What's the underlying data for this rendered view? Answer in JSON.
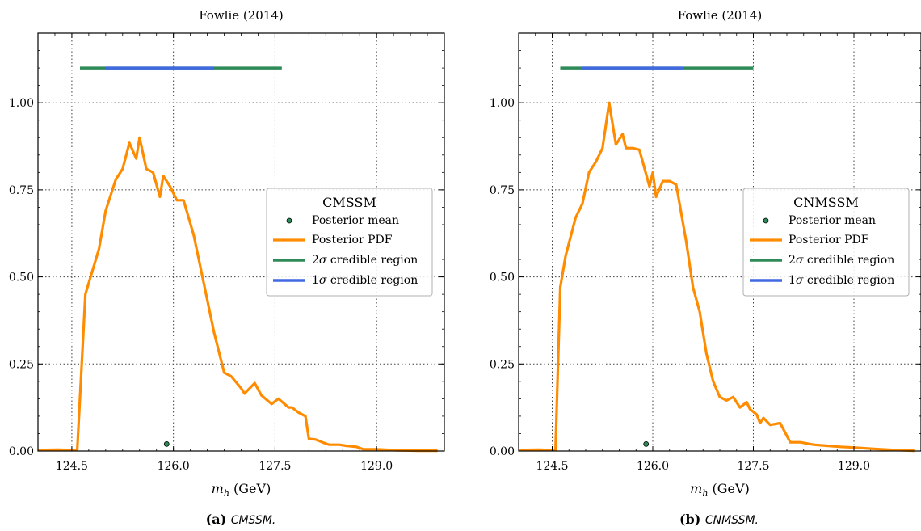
{
  "chart_data": [
    {
      "type": "line",
      "title": "Fowlie (2014)",
      "xlabel": "m_h (GeV)",
      "ylabel": "",
      "xlim": [
        124.0,
        130.0
      ],
      "ylim": [
        0.0,
        1.2
      ],
      "xticks": [
        "124.5",
        "126.0",
        "127.5",
        "129.0"
      ],
      "yticks": [
        "0.00",
        "0.25",
        "0.50",
        "0.75",
        "1.00"
      ],
      "grid": true,
      "legend": {
        "placement": "center-right",
        "title": "CMSSM",
        "entries": [
          "Posterior mean",
          "Posterior PDF",
          "2σ credible region",
          "1σ credible region"
        ]
      },
      "series": [
        {
          "name": "Posterior PDF",
          "x": [
            124.0,
            124.3,
            124.45,
            124.5,
            124.58,
            124.7,
            124.9,
            125.0,
            125.15,
            125.25,
            125.35,
            125.45,
            125.5,
            125.6,
            125.7,
            125.8,
            125.85,
            125.95,
            126.05,
            126.15,
            126.3,
            126.45,
            126.6,
            126.75,
            126.85,
            127.0,
            127.05,
            127.2,
            127.3,
            127.45,
            127.55,
            127.7,
            127.75,
            127.85,
            127.95,
            128.0,
            128.1,
            128.2,
            128.3,
            128.45,
            128.55,
            128.7,
            128.8,
            129.0,
            129.3,
            129.6,
            129.9
          ],
          "y": [
            0.003,
            0.004,
            0.003,
            0.003,
            0.003,
            0.45,
            0.58,
            0.69,
            0.78,
            0.81,
            0.885,
            0.84,
            0.9,
            0.81,
            0.8,
            0.73,
            0.79,
            0.76,
            0.72,
            0.72,
            0.62,
            0.48,
            0.34,
            0.225,
            0.215,
            0.18,
            0.165,
            0.195,
            0.16,
            0.135,
            0.15,
            0.125,
            0.125,
            0.11,
            0.1,
            0.035,
            0.033,
            0.025,
            0.018,
            0.018,
            0.015,
            0.012,
            0.005,
            0.005,
            0.002,
            0.001,
            0.001
          ]
        },
        {
          "name": "Posterior mean",
          "x": [
            125.9
          ],
          "y": [
            0.02
          ]
        },
        {
          "name": "2σ credible region",
          "x": [
            124.62,
            127.6
          ],
          "y": [
            1.1,
            1.1
          ]
        },
        {
          "name": "1σ credible region",
          "x": [
            125.0,
            126.6
          ],
          "y": [
            1.1,
            1.1
          ]
        }
      ],
      "caption": {
        "label": "(a)",
        "text": "CMSSM."
      }
    },
    {
      "type": "line",
      "title": "Fowlie (2014)",
      "xlabel": "m_h (GeV)",
      "ylabel": "",
      "xlim": [
        124.0,
        130.0
      ],
      "ylim": [
        0.0,
        1.2
      ],
      "xticks": [
        "124.5",
        "126.0",
        "127.5",
        "129.0"
      ],
      "yticks": [
        "0.00",
        "0.25",
        "0.50",
        "0.75",
        "1.00"
      ],
      "grid": true,
      "legend": {
        "placement": "center-right",
        "title": "CNMSSM",
        "entries": [
          "Posterior mean",
          "Posterior PDF",
          "2σ credible region",
          "1σ credible region"
        ]
      },
      "series": [
        {
          "name": "Posterior PDF",
          "x": [
            124.0,
            124.3,
            124.45,
            124.5,
            124.55,
            124.62,
            124.7,
            124.85,
            124.95,
            125.05,
            125.15,
            125.25,
            125.35,
            125.45,
            125.55,
            125.6,
            125.7,
            125.8,
            125.95,
            126.0,
            126.05,
            126.15,
            126.25,
            126.35,
            126.5,
            126.6,
            126.7,
            126.8,
            126.9,
            127.0,
            127.1,
            127.2,
            127.3,
            127.4,
            127.45,
            127.55,
            127.6,
            127.65,
            127.75,
            127.9,
            128.05,
            128.2,
            128.4,
            128.6,
            128.8,
            129.0,
            129.3,
            129.6,
            129.9
          ],
          "y": [
            0.003,
            0.004,
            0.003,
            0.003,
            0.004,
            0.47,
            0.56,
            0.67,
            0.71,
            0.8,
            0.83,
            0.87,
            1.0,
            0.88,
            0.91,
            0.87,
            0.87,
            0.865,
            0.76,
            0.8,
            0.73,
            0.775,
            0.775,
            0.765,
            0.6,
            0.47,
            0.4,
            0.28,
            0.2,
            0.155,
            0.145,
            0.155,
            0.125,
            0.14,
            0.12,
            0.105,
            0.08,
            0.095,
            0.075,
            0.08,
            0.025,
            0.025,
            0.018,
            0.015,
            0.012,
            0.01,
            0.006,
            0.003,
            0.001
          ]
        },
        {
          "name": "Posterior mean",
          "x": [
            125.9
          ],
          "y": [
            0.02
          ]
        },
        {
          "name": "2σ credible region",
          "x": [
            124.62,
            127.5
          ],
          "y": [
            1.1,
            1.1
          ]
        },
        {
          "name": "1σ credible region",
          "x": [
            124.95,
            126.45
          ],
          "y": [
            1.1,
            1.1
          ]
        }
      ],
      "caption": {
        "label": "(b)",
        "text": "CNMSSM."
      }
    }
  ],
  "colors": {
    "pdf": "#ff8c00",
    "sigma2": "#2e8b57",
    "sigma1": "#4169e1",
    "mean_fill": "#2e8b57",
    "grid": "#444444",
    "frame": "#000000"
  }
}
